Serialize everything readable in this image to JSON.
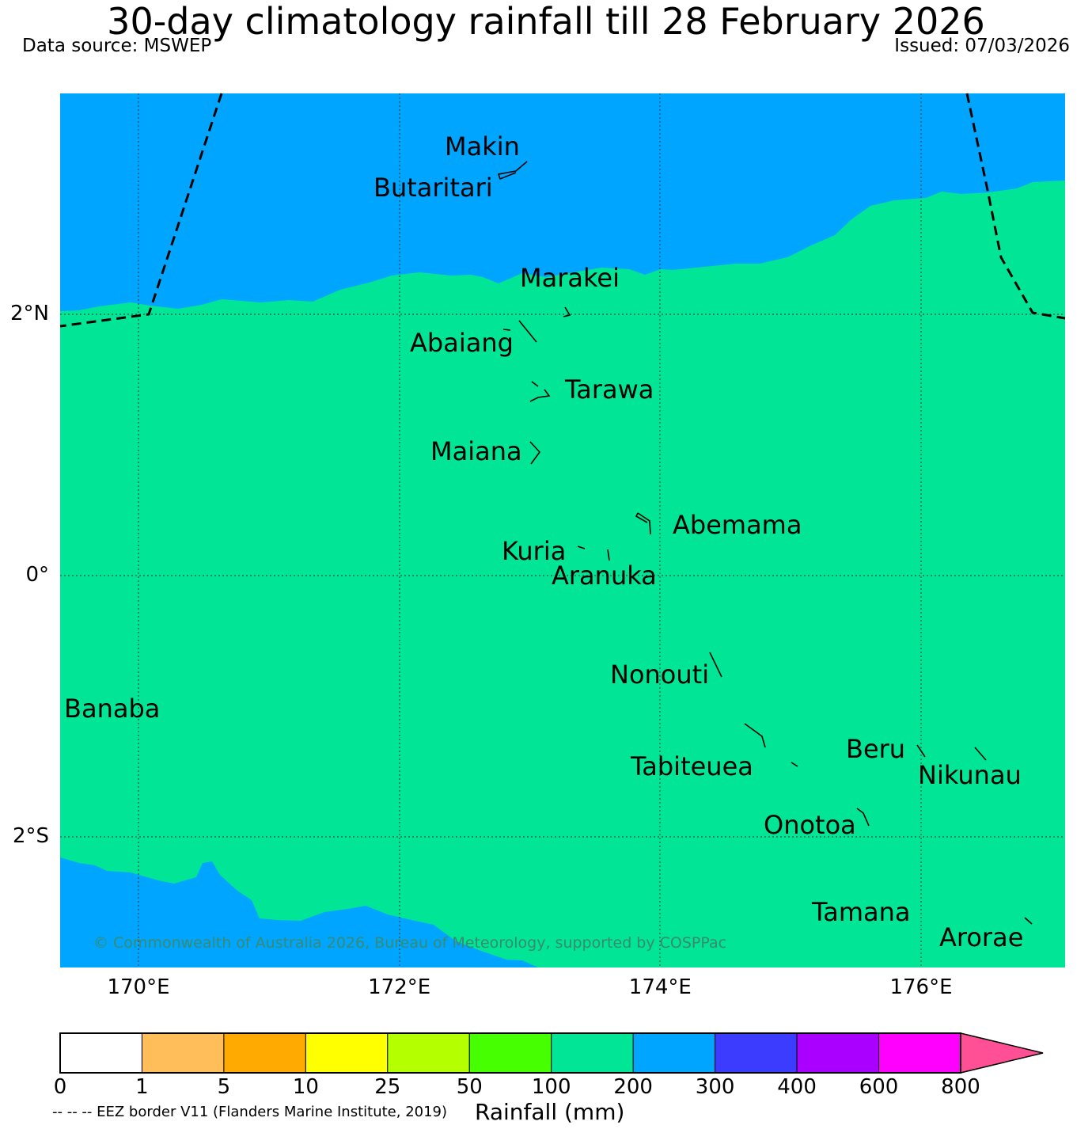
{
  "title": "30-day climatology rainfall till 28 February 2026",
  "data_source": "Data source: MSWEP",
  "issued": "Issued: 07/03/2026",
  "map": {
    "lon_range": [
      169.4,
      177.1
    ],
    "lat_range": [
      -3.0,
      3.7
    ],
    "lat_labels": [
      {
        "lat": 2,
        "text": "2°N"
      },
      {
        "lat": 0,
        "text": "0°"
      },
      {
        "lat": -2,
        "text": "2°S"
      }
    ],
    "lon_labels": [
      {
        "lon": 170,
        "text": "170°E"
      },
      {
        "lon": 172,
        "text": "172°E"
      },
      {
        "lon": 174,
        "text": "174°E"
      },
      {
        "lon": 176,
        "text": "176°E"
      }
    ],
    "fill_colors": {
      "200-300": "#00a5ff",
      "100-200": "#00e696"
    },
    "islands": [
      {
        "name": "Makin",
        "lon": 173.0,
        "lat": 3.1
      },
      {
        "name": "Butaritari",
        "lon": 172.9,
        "lat": 3.05
      },
      {
        "name": "Marakei",
        "lon": 173.3,
        "lat": 2.0
      },
      {
        "name": "Abaiang",
        "lon": 172.95,
        "lat": 1.85
      },
      {
        "name": "Tarawa",
        "lon": 173.1,
        "lat": 1.4
      },
      {
        "name": "Maiana",
        "lon": 173.0,
        "lat": 0.9
      },
      {
        "name": "Abemama",
        "lon": 173.9,
        "lat": 0.4
      },
      {
        "name": "Kuria",
        "lon": 173.4,
        "lat": 0.22
      },
      {
        "name": "Aranuka",
        "lon": 173.6,
        "lat": 0.17
      },
      {
        "name": "Nonouti",
        "lon": 174.4,
        "lat": -0.65
      },
      {
        "name": "Banaba",
        "lon": 169.5,
        "lat": -0.85
      },
      {
        "name": "Tabiteuea",
        "lon": 174.8,
        "lat": -1.3
      },
      {
        "name": "Beru",
        "lon": 176.0,
        "lat": -1.35
      },
      {
        "name": "Nikunau",
        "lon": 176.45,
        "lat": -1.35
      },
      {
        "name": "Onotoa",
        "lon": 175.55,
        "lat": -1.8
      },
      {
        "name": "Tamana",
        "lon": 175.9,
        "lat": -2.6
      },
      {
        "name": "Arorae",
        "lon": 176.8,
        "lat": -2.65
      }
    ]
  },
  "copyright": "© Commonwealth of Australia 2026, Bureau of Meteorology, supported by COSPPac",
  "colorbar": {
    "label": "Rainfall (mm)",
    "ticks": [
      "0",
      "1",
      "5",
      "10",
      "25",
      "50",
      "100",
      "200",
      "300",
      "400",
      "600",
      "800"
    ],
    "colors": [
      "#ffffff",
      "#ffbe5a",
      "#ffaa00",
      "#ffff00",
      "#b4ff00",
      "#46ff00",
      "#00e696",
      "#00a5ff",
      "#3c3cff",
      "#aa00ff",
      "#ff00ff",
      "#ff5096"
    ]
  },
  "footnote": "-- -- -- EEZ border V11 (Flanders Marine Institute, 2019)"
}
